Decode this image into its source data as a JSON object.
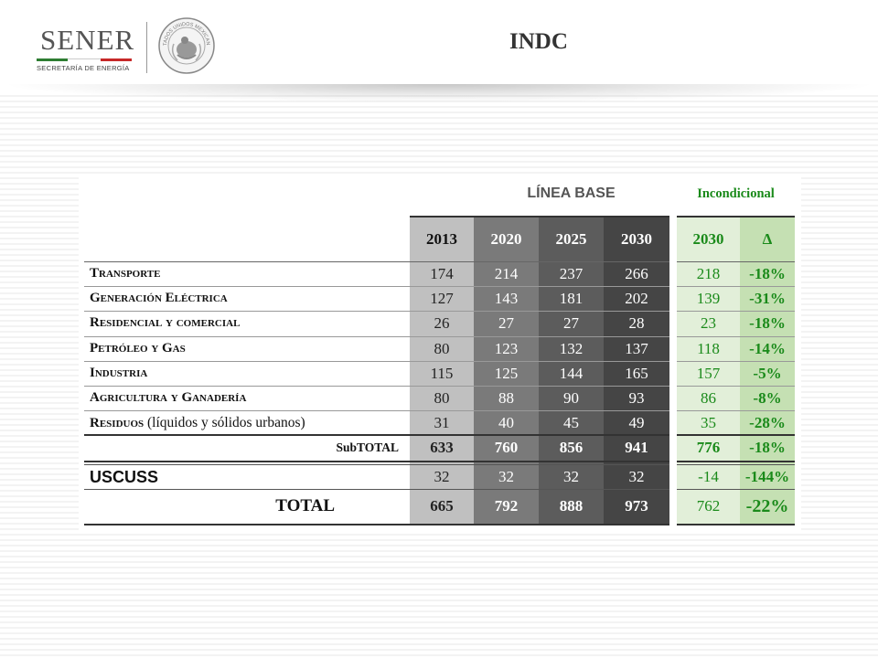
{
  "header": {
    "brand_name": "SENER",
    "brand_subtitle": "SECRETARÍA DE ENERGÍA",
    "seal_text": "ESTADOS UNIDOS MEXICANOS",
    "page_title": "INDC"
  },
  "table": {
    "group_baseline": "LÍNEA BASE",
    "group_unconditional": "Incondicional",
    "columns": [
      "2013",
      "2020",
      "2025",
      "2030",
      "2030",
      "Δ"
    ],
    "rows": [
      {
        "label": "Transporte",
        "note": "",
        "values": [
          "174",
          "214",
          "237",
          "266",
          "218",
          "-18%"
        ]
      },
      {
        "label": "Generación Eléctrica",
        "note": "",
        "values": [
          "127",
          "143",
          "181",
          "202",
          "139",
          "-31%"
        ]
      },
      {
        "label": "Residencial y comercial",
        "note": "",
        "values": [
          "26",
          "27",
          "27",
          "28",
          "23",
          "-18%"
        ]
      },
      {
        "label": "Petróleo y Gas",
        "note": "",
        "values": [
          "80",
          "123",
          "132",
          "137",
          "118",
          "-14%"
        ]
      },
      {
        "label": "Industria",
        "note": "",
        "values": [
          "115",
          "125",
          "144",
          "165",
          "157",
          "-5%"
        ]
      },
      {
        "label": "Agricultura y Ganadería",
        "note": "",
        "values": [
          "80",
          "88",
          "90",
          "93",
          "86",
          "-8%"
        ]
      },
      {
        "label": "Residuos",
        "note": " (líquidos y sólidos urbanos)",
        "values": [
          "31",
          "40",
          "45",
          "49",
          "35",
          "-28%"
        ]
      }
    ],
    "subtotal": {
      "label": "SubTOTAL",
      "values": [
        "633",
        "760",
        "856",
        "941",
        "776",
        "-18%"
      ]
    },
    "uscuss": {
      "label": "USCUSS",
      "values": [
        "32",
        "32",
        "32",
        "32",
        "-14",
        "-144%"
      ]
    },
    "total": {
      "label": "TOTAL",
      "values": [
        "665",
        "792",
        "888",
        "973",
        "762",
        "-22%"
      ]
    }
  },
  "colors": {
    "col2013": "#c0c0c0",
    "col2020": "#7a7a7a",
    "col2025": "#5c5c5c",
    "col2030": "#454545",
    "uncond_2030": "#e2efd9",
    "uncond_delta": "#c5e0b3",
    "green_text": "#1a8a1a"
  }
}
